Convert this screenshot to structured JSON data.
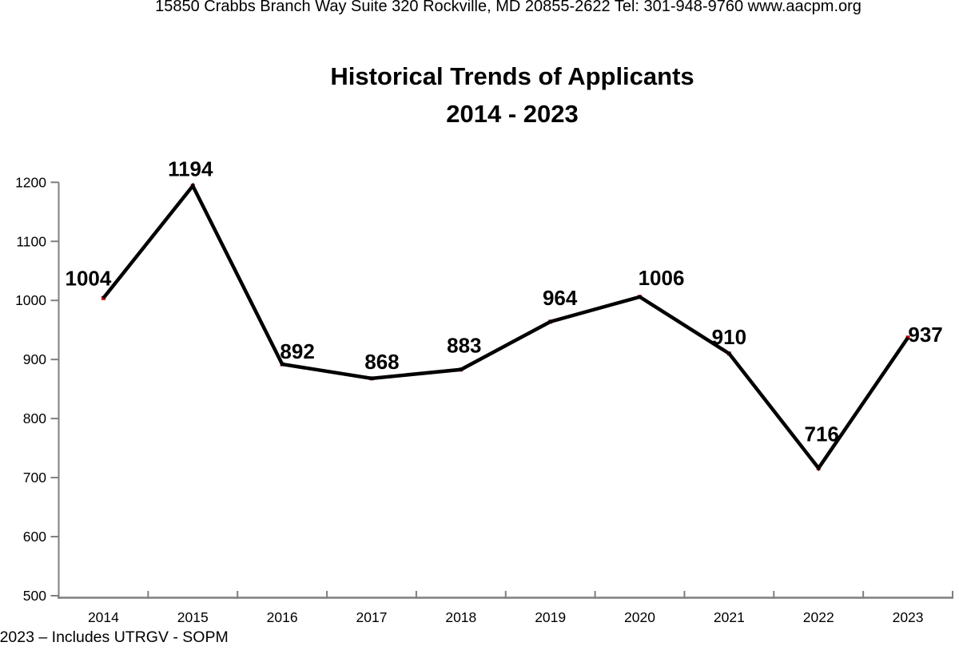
{
  "page": {
    "letterhead": "15850 Crabbs Branch Way Suite 320 Rockville, MD 20855-2622 Tel: 301-948-9760 www.aacpm.org",
    "footnote": "*2023 – Includes UTRGV - SOPM"
  },
  "chart_data": {
    "type": "line",
    "title": "Historical Trends of Applicants",
    "subtitle": "2014 - 2023",
    "categories": [
      "2014",
      "2015",
      "2016",
      "2017",
      "2018",
      "2019",
      "2020",
      "2021",
      "2022",
      "2023"
    ],
    "values": [
      1004,
      1194,
      892,
      868,
      883,
      964,
      1006,
      910,
      716,
      937
    ],
    "y_ticks": [
      500,
      600,
      700,
      800,
      900,
      1000,
      1100,
      1200
    ],
    "ylim": [
      500,
      1200
    ],
    "xlabel": "",
    "ylabel": "",
    "grid": false,
    "legend": "none",
    "data_labels_shown": true,
    "line_color": "#000000",
    "marker_color": "#c00000",
    "axis_color": "#7f7f7f",
    "text_color": "#000000"
  }
}
